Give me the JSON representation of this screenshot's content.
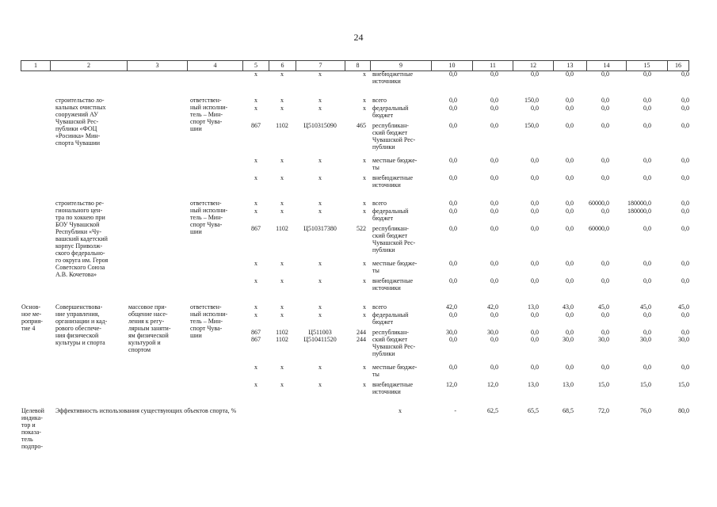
{
  "page_number": "24",
  "header": [
    "1",
    "2",
    "3",
    "4",
    "5",
    "6",
    "7",
    "8",
    "9",
    "10",
    "11",
    "12",
    "13",
    "14",
    "15",
    "16"
  ],
  "rows": [
    {
      "top": 89,
      "c5": "х",
      "c6": "х",
      "c7": "х",
      "c8": "х",
      "src": "внебюджетные\nисточники",
      "v": [
        "0,0",
        "0,0",
        "0,0",
        "0,0",
        "0,0",
        "0,0",
        "0,0"
      ]
    },
    {
      "top": 122,
      "c5": "х",
      "c6": "х",
      "c7": "х",
      "c8": "х",
      "src": "всего",
      "v": [
        "0,0",
        "0,0",
        "150,0",
        "0,0",
        "0,0",
        "0,0",
        "0,0"
      ]
    },
    {
      "top": 132,
      "c5": "х",
      "c6": "х",
      "c7": "х",
      "c8": "х",
      "src": "федеральный\nбюджет",
      "v": [
        "0,0",
        "0,0",
        "0,0",
        "0,0",
        "0,0",
        "0,0",
        "0,0"
      ]
    },
    {
      "top": 154,
      "c5": "867",
      "c6": "1102",
      "c7": "Ц510315090",
      "c8": "465",
      "src": "республикан-\nский бюджет\nЧувашской Рес-\nпублики",
      "v": [
        "0,0",
        "0,0",
        "150,0",
        "0,0",
        "0,0",
        "0,0",
        "0,0"
      ]
    },
    {
      "top": 198,
      "c5": "х",
      "c6": "х",
      "c7": "х",
      "c8": "х",
      "src": "местные бюдже-\nты",
      "v": [
        "0,0",
        "0,0",
        "0,0",
        "0,0",
        "0,0",
        "0,0",
        "0,0"
      ]
    },
    {
      "top": 220,
      "c5": "х",
      "c6": "х",
      "c7": "х",
      "c8": "х",
      "src": "внебюджетные\nисточники",
      "v": [
        "0,0",
        "0,0",
        "0,0",
        "0,0",
        "0,0",
        "0,0",
        "0,0"
      ]
    },
    {
      "top": 252,
      "c5": "х",
      "c6": "х",
      "c7": "х",
      "c8": "х",
      "src": "всего",
      "v": [
        "0,0",
        "0,0",
        "0,0",
        "0,0",
        "60000,0",
        "180000,0",
        "0,0"
      ]
    },
    {
      "top": 262,
      "c5": "х",
      "c6": "х",
      "c7": "х",
      "c8": "х",
      "src": "федеральный\nбюджет",
      "v": [
        "0,0",
        "0,0",
        "0,0",
        "0,0",
        "0,0",
        "180000,0",
        "0,0"
      ]
    },
    {
      "top": 284,
      "c5": "867",
      "c6": "1102",
      "c7": "Ц510317380",
      "c8": "522",
      "src": "республикан-\nский бюджет\nЧувашской Рес-\nпублики",
      "v": [
        "0,0",
        "0,0",
        "0,0",
        "0,0",
        "60000,0",
        "0,0",
        "0,0"
      ]
    },
    {
      "top": 328,
      "c5": "х",
      "c6": "х",
      "c7": "х",
      "c8": "х",
      "src": "местные бюдже-\nты",
      "v": [
        "0,0",
        "0,0",
        "0,0",
        "0,0",
        "0,0",
        "0,0",
        "0,0"
      ]
    },
    {
      "top": 350,
      "c5": "х",
      "c6": "х",
      "c7": "х",
      "c8": "х",
      "src": "внебюджетные\nисточники",
      "v": [
        "0,0",
        "0,0",
        "0,0",
        "0,0",
        "0,0",
        "0,0",
        "0,0"
      ]
    },
    {
      "top": 383,
      "c5": "х",
      "c6": "х",
      "c7": "х",
      "c8": "х",
      "src": "всего",
      "v": [
        "42,0",
        "42,0",
        "13,0",
        "43,0",
        "45,0",
        "45,0",
        "45,0"
      ]
    },
    {
      "top": 393,
      "c5": "х",
      "c6": "х",
      "c7": "х",
      "c8": "х",
      "src": "федеральный\nбюджет",
      "v": [
        "0,0",
        "0,0",
        "0,0",
        "0,0",
        "0,0",
        "0,0",
        "0,0"
      ]
    },
    {
      "top": 415,
      "c5": "867\n867",
      "c6": "1102\n1102",
      "c7": "Ц511003\nЦ510411520",
      "c8": "244\n244",
      "src": "республикан-\nский бюджет\nЧувашской Рес-\nпублики",
      "v": [
        "30,0\n0,0",
        "30,0\n0,0",
        "0,0\n0,0",
        "0,0\n30,0",
        "0,0\n30,0",
        "0,0\n30,0",
        "0,0\n30,0"
      ]
    },
    {
      "top": 459,
      "c5": "х",
      "c6": "х",
      "c7": "х",
      "c8": "х",
      "src": "местные бюдже-\nты",
      "v": [
        "0,0",
        "0,0",
        "0,0",
        "0,0",
        "0,0",
        "0,0",
        "0,0"
      ]
    },
    {
      "top": 481,
      "c5": "х",
      "c6": "х",
      "c7": "х",
      "c8": "х",
      "src": "внебюджетные\nисточники",
      "v": [
        "12,0",
        "12,0",
        "13,0",
        "13,0",
        "15,0",
        "15,0",
        "15,0"
      ]
    }
  ],
  "blocks": {
    "b1_name": "строительство ло-\nкальных очистных\nсооружений АУ\nЧувашской Рес-\nпублики «ФОЦ\n«Росинка» Мин-\nспорта Чувашии",
    "b1_exec": "ответствен-\nный исполни-\nтель – Мин-\nспорт Чува-\nшии",
    "b2_name": "строительство ре-\nгионального цен-\nтра по хоккею при\nБОУ Чувашской\nРеспублики «Чу-\nвашский кадетский\nкорпус Приволж-\nского федерально-\nго округа им. Героя\nСоветского Союза\nА.В. Кочетова»",
    "b2_exec": "ответствен-\nный исполни-\nтель – Мин-\nспорт Чува-\nшии",
    "b3_status": "Основ-\nное ме-\nроприя-\nтие 4",
    "b3_name": "Совершенствова-\nние управления,\nорганизации и кад-\nрового обеспече-\nния физической\nкультуры и спорта",
    "b3_goal": "массовое при-\nобщение насе-\nления к регу-\nлярным заняти-\nям физической\nкультурой и\nспортом",
    "b3_exec": "ответствен-\nный исполни-\nтель – Мин-\nспорт Чува-\nшии"
  },
  "target": {
    "label": "Целевой\nиндика-\nтор и\nпоказа-\nтель\nподпро-",
    "description": "Эффективность использования существующих объектов спорта, %",
    "c9": "х",
    "c10": "-",
    "v": [
      "62,5",
      "65,5",
      "68,5",
      "72,0",
      "76,0",
      "80,0"
    ]
  }
}
